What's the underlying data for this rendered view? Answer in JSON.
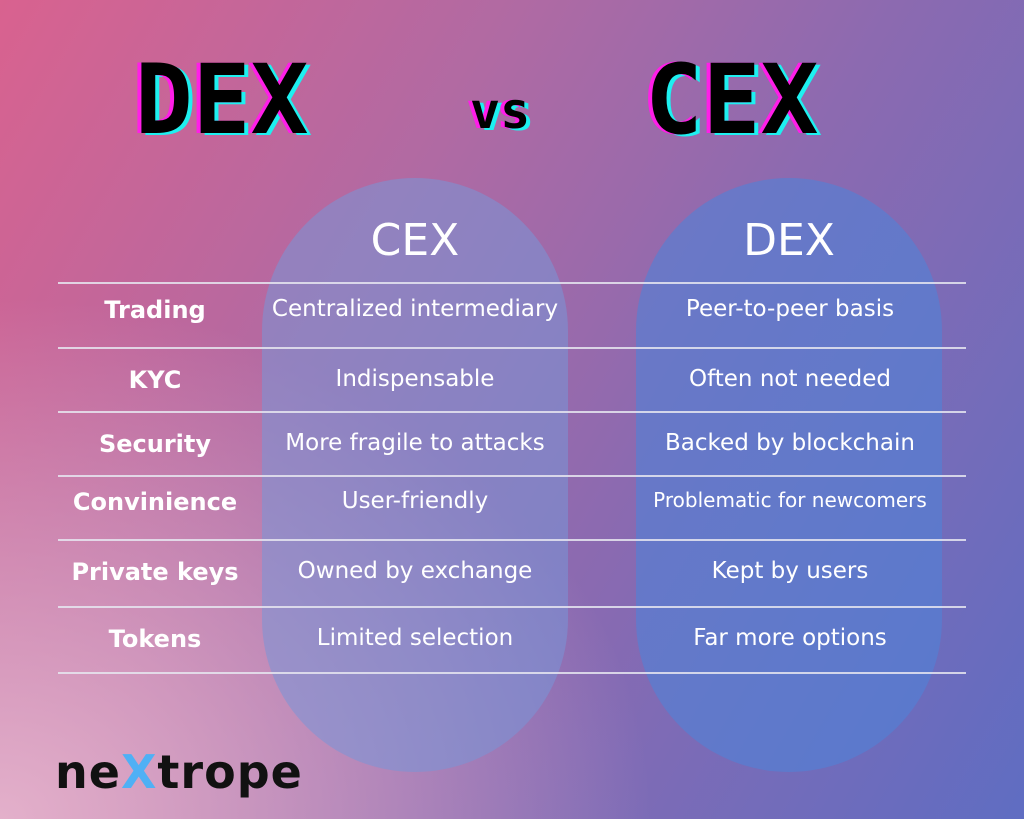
{
  "title": {
    "left": "DEX",
    "vs": "vs",
    "right": "CEX"
  },
  "table": {
    "columns": [
      "CEX",
      "DEX"
    ],
    "rows": [
      {
        "label": "Trading",
        "cex": "Centralized intermediary",
        "dex": "Peer-to-peer basis"
      },
      {
        "label": "KYC",
        "cex": "Indispensable",
        "dex": "Often not needed"
      },
      {
        "label": "Security",
        "cex": "More fragile to attacks",
        "dex": "Backed by blockchain"
      },
      {
        "label": "Convinience",
        "cex": "User-friendly",
        "dex": "Problematic for newcomers"
      },
      {
        "label": "Private keys",
        "cex": "Owned by exchange",
        "dex": "Kept by users"
      },
      {
        "label": "Tokens",
        "cex": "Limited selection",
        "dex": "Far more options"
      }
    ]
  },
  "logo": {
    "pre": "ne",
    "x": "X",
    "post": "trope"
  }
}
